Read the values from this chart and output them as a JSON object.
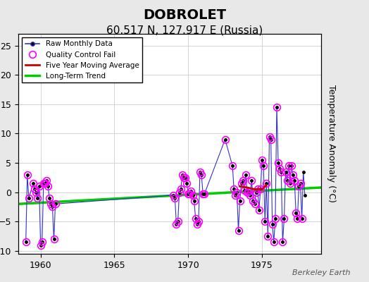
{
  "title": "DOBROLET",
  "subtitle": "60.517 N, 127.917 E (Russia)",
  "ylabel": "Temperature Anomaly (°C)",
  "credit": "Berkeley Earth",
  "xlim": [
    1958.5,
    1979.0
  ],
  "ylim": [
    -10.5,
    27
  ],
  "yticks": [
    -10,
    -5,
    0,
    5,
    10,
    15,
    20,
    25
  ],
  "xticks": [
    1960,
    1965,
    1970,
    1975
  ],
  "bg_color": "#e8e8e8",
  "plot_bg_color": "#ffffff",
  "raw_data": [
    [
      1959.0,
      -8.5
    ],
    [
      1959.1,
      3.0
    ],
    [
      1959.2,
      -1.0
    ],
    [
      1959.5,
      1.5
    ],
    [
      1959.6,
      0.5
    ],
    [
      1959.7,
      0.0
    ],
    [
      1959.8,
      -1.0
    ],
    [
      1959.9,
      1.0
    ],
    [
      1960.0,
      -9.0
    ],
    [
      1960.1,
      -8.5
    ],
    [
      1960.2,
      1.5
    ],
    [
      1960.3,
      1.5
    ],
    [
      1960.4,
      2.0
    ],
    [
      1960.5,
      1.0
    ],
    [
      1960.6,
      -1.0
    ],
    [
      1960.7,
      -2.0
    ],
    [
      1960.8,
      -2.5
    ],
    [
      1960.9,
      -8.0
    ],
    [
      1961.0,
      -2.0
    ],
    [
      1969.0,
      -0.5
    ],
    [
      1969.1,
      -1.0
    ],
    [
      1969.2,
      -5.5
    ],
    [
      1969.3,
      -5.0
    ],
    [
      1969.4,
      0.0
    ],
    [
      1969.5,
      0.5
    ],
    [
      1969.6,
      3.0
    ],
    [
      1969.7,
      2.5
    ],
    [
      1969.8,
      2.5
    ],
    [
      1969.9,
      1.5
    ],
    [
      1970.0,
      -0.3
    ],
    [
      1970.1,
      -0.3
    ],
    [
      1970.2,
      0.2
    ],
    [
      1970.3,
      -0.5
    ],
    [
      1970.4,
      -1.5
    ],
    [
      1970.5,
      -4.5
    ],
    [
      1970.6,
      -5.5
    ],
    [
      1970.7,
      -5.0
    ],
    [
      1970.8,
      3.5
    ],
    [
      1970.9,
      3.0
    ],
    [
      1971.0,
      -0.3
    ],
    [
      1971.1,
      -0.3
    ],
    [
      1972.5,
      9.0
    ],
    [
      1973.0,
      4.5
    ],
    [
      1973.1,
      0.5
    ],
    [
      1973.2,
      -0.5
    ],
    [
      1973.3,
      0.0
    ],
    [
      1973.4,
      -6.5
    ],
    [
      1973.5,
      -1.5
    ],
    [
      1973.6,
      1.5
    ],
    [
      1973.7,
      2.0
    ],
    [
      1973.8,
      0.3
    ],
    [
      1973.9,
      3.0
    ],
    [
      1974.0,
      0.0
    ],
    [
      1974.1,
      0.2
    ],
    [
      1974.2,
      -0.5
    ],
    [
      1974.3,
      2.0
    ],
    [
      1974.4,
      -1.5
    ],
    [
      1974.5,
      -2.0
    ],
    [
      1974.6,
      0.0
    ],
    [
      1974.7,
      0.5
    ],
    [
      1974.8,
      -3.0
    ],
    [
      1974.9,
      0.5
    ],
    [
      1975.0,
      5.5
    ],
    [
      1975.1,
      4.5
    ],
    [
      1975.2,
      -5.0
    ],
    [
      1975.3,
      1.5
    ],
    [
      1975.4,
      -7.5
    ],
    [
      1975.5,
      9.5
    ],
    [
      1975.6,
      9.0
    ],
    [
      1975.7,
      -5.5
    ],
    [
      1975.8,
      -8.5
    ],
    [
      1975.9,
      -4.5
    ],
    [
      1976.0,
      14.5
    ],
    [
      1976.1,
      5.0
    ],
    [
      1976.2,
      4.0
    ],
    [
      1976.3,
      3.5
    ],
    [
      1976.4,
      -8.5
    ],
    [
      1976.5,
      -4.5
    ],
    [
      1976.6,
      3.5
    ],
    [
      1976.7,
      2.0
    ],
    [
      1976.8,
      4.5
    ],
    [
      1976.9,
      1.5
    ],
    [
      1977.0,
      4.5
    ],
    [
      1977.1,
      3.0
    ],
    [
      1977.2,
      2.0
    ],
    [
      1977.3,
      -3.5
    ],
    [
      1977.4,
      -4.5
    ],
    [
      1977.5,
      1.0
    ],
    [
      1977.6,
      1.5
    ],
    [
      1977.7,
      -4.5
    ],
    [
      1977.8,
      3.5
    ],
    [
      1977.9,
      -0.5
    ]
  ],
  "qc_fail_indices": [
    0,
    1,
    2,
    3,
    4,
    5,
    6,
    7,
    8,
    9,
    10,
    11,
    12,
    13,
    14,
    15,
    16,
    17,
    18,
    19,
    20,
    21,
    22,
    23,
    24,
    25,
    26,
    27,
    28,
    29,
    30,
    31,
    32,
    33,
    34,
    35,
    36,
    37,
    38,
    39,
    40,
    41,
    42,
    43,
    44,
    45,
    46,
    47,
    48,
    49,
    50,
    51,
    52,
    53,
    54,
    55,
    56,
    57,
    58,
    59,
    60,
    61,
    62,
    63,
    64,
    65,
    66,
    67,
    68,
    69,
    70,
    71,
    72,
    73,
    74,
    75,
    76,
    77,
    78,
    79,
    80,
    81,
    82,
    83,
    84,
    85,
    86,
    87,
    88,
    89
  ],
  "moving_avg": [
    [
      1973.5,
      1.0
    ],
    [
      1974.0,
      0.8
    ],
    [
      1974.5,
      0.5
    ],
    [
      1975.0,
      0.5
    ],
    [
      1975.3,
      1.2
    ]
  ],
  "trend_x": [
    1958.5,
    1979.0
  ],
  "trend_y": [
    -2.0,
    0.8
  ],
  "raw_color": "#3333cc",
  "raw_marker_color": "#000000",
  "qc_color": "#ff00ff",
  "ma_color": "#cc0000",
  "trend_color": "#00cc00",
  "title_fontsize": 14,
  "subtitle_fontsize": 11,
  "label_fontsize": 9,
  "tick_fontsize": 9
}
